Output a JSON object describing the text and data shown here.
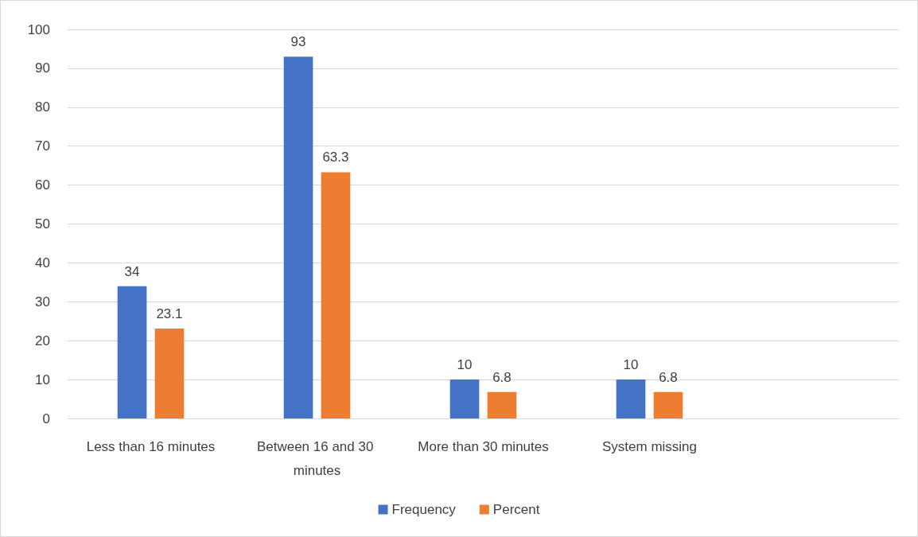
{
  "chart_data": {
    "type": "bar",
    "categories": [
      "Less than 16 minutes",
      "Between 16 and 30 minutes",
      "More than 30 minutes",
      "System missing",
      null
    ],
    "series": [
      {
        "name": "Frequency",
        "color": "#4472c4",
        "values": [
          34,
          93,
          10,
          10,
          null
        ]
      },
      {
        "name": "Percent",
        "color": "#ed7d31",
        "values": [
          23.1,
          63.3,
          6.8,
          6.8,
          null
        ]
      }
    ],
    "ylim": [
      0,
      100
    ],
    "yticks": [
      0,
      10,
      20,
      30,
      40,
      50,
      60,
      70,
      80,
      90,
      100
    ],
    "grid": "y",
    "legend": "bottom",
    "data_labels": true
  }
}
